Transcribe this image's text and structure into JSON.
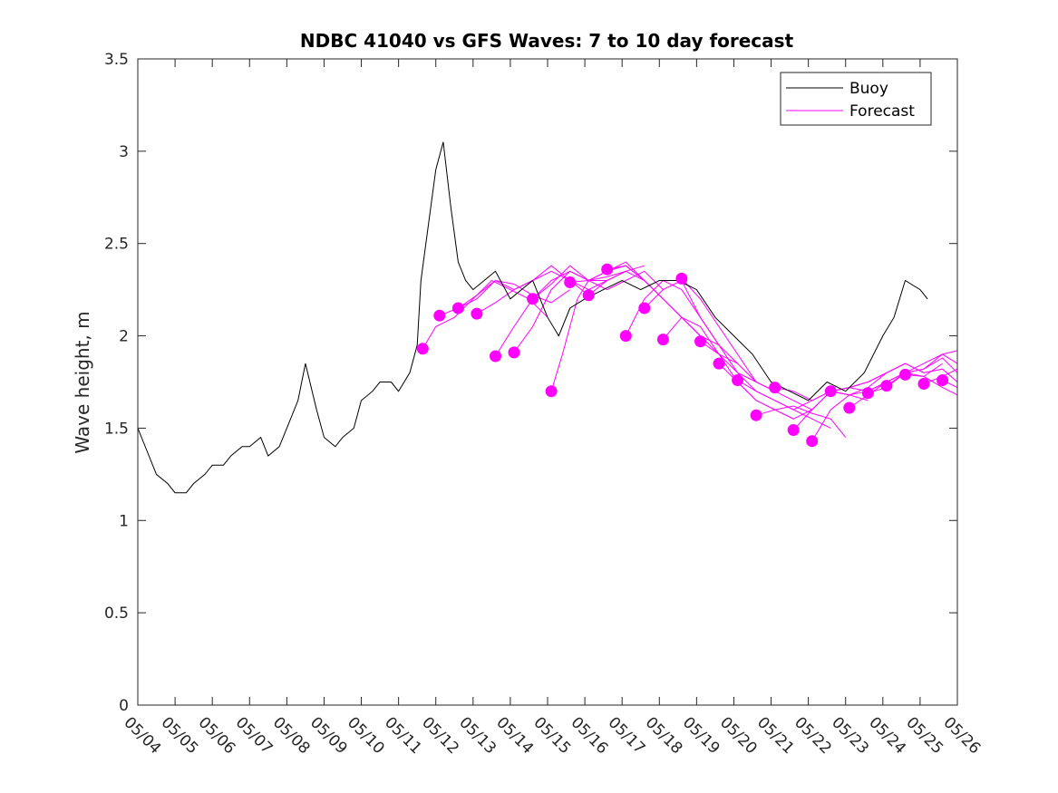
{
  "chart_data": {
    "type": "line",
    "title": "NDBC 41040 vs GFS Waves: 7 to 10 day forecast",
    "xlabel": "",
    "ylabel": "Wave height, m",
    "xlim": [
      "05/04",
      "05/26"
    ],
    "ylim": [
      0,
      3.5
    ],
    "x_tick_labels": [
      "05/04",
      "05/05",
      "05/06",
      "05/07",
      "05/08",
      "05/09",
      "05/10",
      "05/11",
      "05/12",
      "05/13",
      "05/14",
      "05/15",
      "05/16",
      "05/17",
      "05/18",
      "05/19",
      "05/20",
      "05/21",
      "05/22",
      "05/23",
      "05/24",
      "05/25",
      "05/26"
    ],
    "y_tick_labels": [
      "0",
      "0.5",
      "1",
      "1.5",
      "2",
      "2.5",
      "3",
      "3.5"
    ],
    "y_ticks": [
      0,
      0.5,
      1,
      1.5,
      2,
      2.5,
      3,
      3.5
    ],
    "grid": false,
    "legend_position": "top-right",
    "colors": {
      "buoy": "#000000",
      "forecast": "#ff00ff"
    },
    "legend": [
      {
        "label": "Buoy",
        "color": "#000000"
      },
      {
        "label": "Forecast",
        "color": "#ff00ff"
      }
    ],
    "buoy_series": {
      "name": "Buoy",
      "x_day_of_may": [
        4.0,
        4.3,
        4.5,
        4.8,
        5.0,
        5.3,
        5.5,
        5.8,
        6.0,
        6.3,
        6.5,
        6.8,
        7.0,
        7.3,
        7.5,
        7.8,
        8.0,
        8.3,
        8.5,
        8.8,
        9.0,
        9.3,
        9.5,
        9.8,
        10.0,
        10.3,
        10.5,
        10.8,
        11.0,
        11.3,
        11.5,
        11.6,
        11.8,
        12.0,
        12.2,
        12.4,
        12.6,
        12.8,
        13.0,
        13.3,
        13.6,
        14.0,
        14.3,
        14.6,
        15.0,
        15.3,
        15.6,
        16.0,
        16.5,
        17.0,
        17.5,
        18.0,
        18.5,
        19.0,
        19.5,
        20.0,
        20.5,
        21.0,
        21.5,
        22.0,
        22.5,
        23.0,
        23.5,
        24.0,
        24.3,
        24.6,
        25.0,
        25.2
      ],
      "y": [
        1.5,
        1.35,
        1.25,
        1.2,
        1.15,
        1.15,
        1.2,
        1.25,
        1.3,
        1.3,
        1.35,
        1.4,
        1.4,
        1.45,
        1.35,
        1.4,
        1.5,
        1.65,
        1.85,
        1.6,
        1.45,
        1.4,
        1.45,
        1.5,
        1.65,
        1.7,
        1.75,
        1.75,
        1.7,
        1.8,
        1.95,
        2.3,
        2.6,
        2.9,
        3.05,
        2.7,
        2.4,
        2.3,
        2.25,
        2.3,
        2.35,
        2.2,
        2.25,
        2.3,
        2.1,
        2.0,
        2.15,
        2.2,
        2.25,
        2.3,
        2.25,
        2.3,
        2.3,
        2.25,
        2.1,
        2.0,
        1.9,
        1.75,
        1.7,
        1.65,
        1.75,
        1.7,
        1.8,
        2.0,
        2.1,
        2.3,
        2.25,
        2.2
      ]
    },
    "forecast_points": {
      "name": "Forecast",
      "x_day_of_may": [
        11.65,
        12.1,
        12.6,
        13.1,
        13.6,
        14.1,
        14.6,
        15.1,
        15.6,
        16.1,
        16.6,
        17.1,
        17.6,
        18.1,
        18.6,
        19.1,
        19.6,
        20.1,
        20.6,
        21.1,
        21.6,
        22.1,
        22.6,
        23.1,
        23.6,
        24.1,
        24.6,
        25.1,
        25.6
      ],
      "y": [
        1.93,
        2.11,
        2.15,
        2.12,
        1.89,
        1.91,
        2.2,
        1.7,
        2.29,
        2.22,
        2.36,
        2.0,
        2.15,
        1.98,
        2.31,
        1.97,
        1.85,
        1.76,
        1.57,
        1.72,
        1.49,
        1.43,
        1.7,
        1.61,
        1.69,
        1.73,
        1.79,
        1.74,
        1.76
      ]
    },
    "forecast_series": [
      {
        "x_day_of_may": [
          11.65,
          12.0,
          12.5,
          13.0,
          13.5,
          14.0,
          14.5,
          15.0
        ],
        "y": [
          1.93,
          2.05,
          2.1,
          2.2,
          2.3,
          2.25,
          2.2,
          2.1
        ]
      },
      {
        "x_day_of_may": [
          12.1,
          12.6,
          13.1,
          13.6,
          14.1,
          14.6,
          15.1,
          15.6
        ],
        "y": [
          2.11,
          2.15,
          2.22,
          2.3,
          2.28,
          2.22,
          2.18,
          2.25
        ]
      },
      {
        "x_day_of_may": [
          12.6,
          13.1,
          13.6,
          14.1,
          14.6,
          15.1,
          15.6,
          16.1
        ],
        "y": [
          2.15,
          2.2,
          2.3,
          2.25,
          2.3,
          2.38,
          2.3,
          2.22
        ]
      },
      {
        "x_day_of_may": [
          13.1,
          13.6,
          14.1,
          14.6,
          15.1,
          15.6,
          16.1,
          16.6
        ],
        "y": [
          2.12,
          2.18,
          2.25,
          2.3,
          2.35,
          2.3,
          2.25,
          2.3
        ]
      },
      {
        "x_day_of_may": [
          13.6,
          14.1,
          14.6,
          15.1,
          15.6,
          16.1,
          16.6,
          17.1
        ],
        "y": [
          1.89,
          2.05,
          2.2,
          2.3,
          2.35,
          2.3,
          2.32,
          2.35
        ]
      },
      {
        "x_day_of_may": [
          14.1,
          14.6,
          15.1,
          15.6,
          16.1,
          16.6,
          17.1,
          17.6
        ],
        "y": [
          1.91,
          2.05,
          2.25,
          2.35,
          2.3,
          2.3,
          2.35,
          2.38
        ]
      },
      {
        "x_day_of_may": [
          14.6,
          15.1,
          15.6,
          16.1,
          16.6,
          17.1,
          17.6,
          18.1
        ],
        "y": [
          2.2,
          2.28,
          2.38,
          2.3,
          2.25,
          2.3,
          2.35,
          2.25
        ]
      },
      {
        "x_day_of_may": [
          15.1,
          15.4,
          15.8,
          16.1,
          16.6,
          17.1,
          17.6,
          18.1
        ],
        "y": [
          1.7,
          1.9,
          2.2,
          2.3,
          2.35,
          2.38,
          2.3,
          2.2
        ]
      },
      {
        "x_day_of_may": [
          15.6,
          16.1,
          16.6,
          17.1,
          17.6,
          18.1,
          18.6,
          19.1
        ],
        "y": [
          2.29,
          2.3,
          2.35,
          2.4,
          2.3,
          2.2,
          2.1,
          2.0
        ]
      },
      {
        "x_day_of_may": [
          16.1,
          16.6,
          17.1,
          17.6,
          18.1,
          18.6,
          19.1,
          19.6
        ],
        "y": [
          2.22,
          2.3,
          2.35,
          2.3,
          2.2,
          2.1,
          2.0,
          1.95
        ]
      },
      {
        "x_day_of_may": [
          16.6,
          17.1,
          17.6,
          18.1,
          18.6,
          19.1,
          19.6,
          20.1
        ],
        "y": [
          2.36,
          2.38,
          2.3,
          2.2,
          2.1,
          2.0,
          1.9,
          1.85
        ]
      },
      {
        "x_day_of_may": [
          17.1,
          17.6,
          18.1,
          18.6,
          19.1,
          19.6,
          20.1,
          20.6
        ],
        "y": [
          2.0,
          2.2,
          2.3,
          2.25,
          2.1,
          1.95,
          1.85,
          1.75
        ]
      },
      {
        "x_day_of_may": [
          17.6,
          18.1,
          18.6,
          19.1,
          19.6,
          20.1,
          20.6,
          21.1
        ],
        "y": [
          2.15,
          2.25,
          2.3,
          2.1,
          1.95,
          1.8,
          1.75,
          1.7
        ]
      },
      {
        "x_day_of_may": [
          18.1,
          18.6,
          19.1,
          19.6,
          20.1,
          20.6,
          21.1,
          21.6
        ],
        "y": [
          1.98,
          2.1,
          2.05,
          1.9,
          1.75,
          1.65,
          1.6,
          1.55
        ]
      },
      {
        "x_day_of_may": [
          18.6,
          19.1,
          19.6,
          20.1,
          20.6,
          21.1,
          21.6,
          22.1
        ],
        "y": [
          2.31,
          2.2,
          2.05,
          1.9,
          1.75,
          1.7,
          1.65,
          1.6
        ]
      },
      {
        "x_day_of_may": [
          19.1,
          19.6,
          20.1,
          20.6,
          21.1,
          21.6,
          22.1,
          22.6
        ],
        "y": [
          1.97,
          1.9,
          1.8,
          1.7,
          1.65,
          1.6,
          1.55,
          1.5
        ]
      },
      {
        "x_day_of_may": [
          19.6,
          20.1,
          20.6,
          21.1,
          21.6,
          22.1,
          22.6,
          23.0
        ],
        "y": [
          1.85,
          1.75,
          1.65,
          1.6,
          1.62,
          1.58,
          1.55,
          1.45
        ]
      },
      {
        "x_day_of_may": [
          20.1,
          20.6,
          21.1,
          21.6,
          22.1,
          22.6,
          23.1,
          23.6
        ],
        "y": [
          1.76,
          1.7,
          1.65,
          1.6,
          1.65,
          1.7,
          1.68,
          1.65
        ]
      },
      {
        "x_day_of_may": [
          20.6,
          21.1,
          21.6,
          22.1,
          22.6,
          23.1,
          23.6,
          24.1
        ],
        "y": [
          1.57,
          1.6,
          1.55,
          1.6,
          1.7,
          1.72,
          1.7,
          1.75
        ]
      },
      {
        "x_day_of_may": [
          21.1,
          21.6,
          22.1,
          22.6,
          23.1,
          23.6,
          24.1,
          24.6
        ],
        "y": [
          1.72,
          1.7,
          1.65,
          1.7,
          1.72,
          1.75,
          1.8,
          1.85
        ]
      },
      {
        "x_day_of_may": [
          21.6,
          22.1,
          22.6,
          23.1,
          23.6,
          24.1,
          24.6,
          25.1
        ],
        "y": [
          1.49,
          1.6,
          1.7,
          1.68,
          1.72,
          1.8,
          1.85,
          1.8
        ]
      },
      {
        "x_day_of_may": [
          22.1,
          22.6,
          23.1,
          23.6,
          24.1,
          24.6,
          25.1,
          25.6
        ],
        "y": [
          1.43,
          1.6,
          1.68,
          1.7,
          1.75,
          1.8,
          1.78,
          1.85
        ]
      },
      {
        "x_day_of_may": [
          22.6,
          23.1,
          23.6,
          24.1,
          24.6,
          25.1,
          25.6,
          26.0
        ],
        "y": [
          1.7,
          1.72,
          1.75,
          1.8,
          1.85,
          1.8,
          1.82,
          1.75
        ]
      },
      {
        "x_day_of_may": [
          23.1,
          23.6,
          24.1,
          24.6,
          25.1,
          25.6,
          26.0
        ],
        "y": [
          1.61,
          1.68,
          1.75,
          1.8,
          1.82,
          1.9,
          1.85
        ]
      },
      {
        "x_day_of_may": [
          23.6,
          24.1,
          24.6,
          25.1,
          25.6,
          26.0
        ],
        "y": [
          1.69,
          1.72,
          1.8,
          1.82,
          1.88,
          1.8
        ]
      },
      {
        "x_day_of_may": [
          24.1,
          24.6,
          25.1,
          25.6,
          26.0
        ],
        "y": [
          1.73,
          1.8,
          1.85,
          1.9,
          1.92
        ]
      },
      {
        "x_day_of_may": [
          24.6,
          25.1,
          25.6,
          26.0
        ],
        "y": [
          1.79,
          1.78,
          1.72,
          1.68
        ]
      },
      {
        "x_day_of_may": [
          25.1,
          25.6,
          26.0
        ],
        "y": [
          1.74,
          1.78,
          1.82
        ]
      },
      {
        "x_day_of_may": [
          25.6,
          26.0
        ],
        "y": [
          1.76,
          1.72
        ]
      }
    ]
  }
}
